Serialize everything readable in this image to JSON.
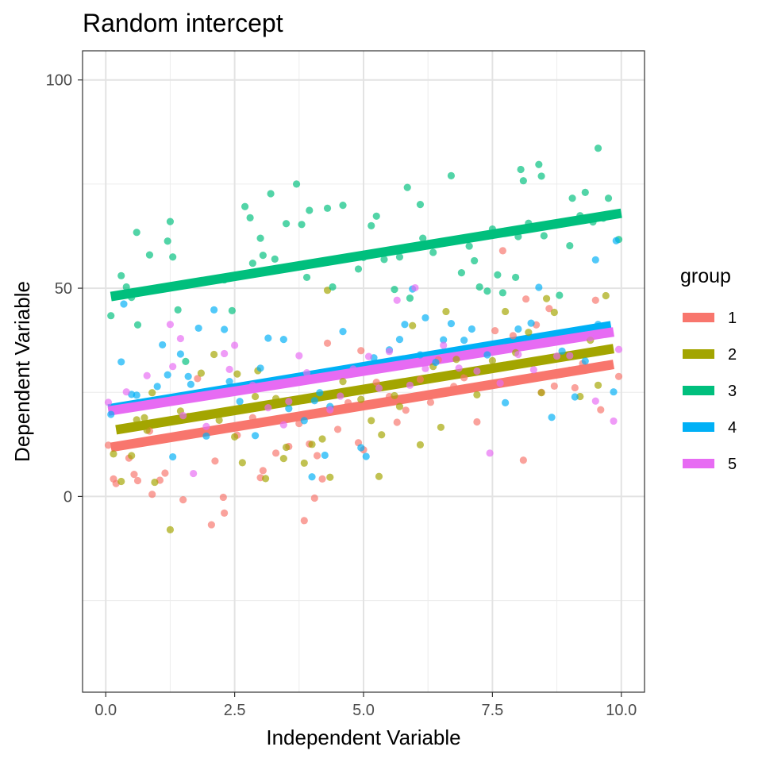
{
  "chart_data": {
    "type": "scatter",
    "title": "Random intercept",
    "xlabel": "Independent Variable",
    "ylabel": "Dependent Variable",
    "xlim": [
      -0.45,
      10.45
    ],
    "ylim": [
      -47,
      107
    ],
    "x_ticks": [
      0.0,
      2.5,
      5.0,
      7.5,
      10.0
    ],
    "x_tick_labels": [
      "0.0",
      "2.5",
      "5.0",
      "7.5",
      "10.0"
    ],
    "y_ticks": [
      0,
      50,
      100
    ],
    "y_tick_labels": [
      "0",
      "50",
      "100"
    ],
    "y_minor_ticks": [
      -25,
      25,
      75
    ],
    "x_minor_ticks": [
      1.25,
      3.75,
      6.25,
      8.75
    ],
    "grid": true,
    "legend": {
      "title": "group",
      "placement": "right",
      "entries": [
        "1",
        "2",
        "3",
        "4",
        "5"
      ]
    },
    "series": [
      {
        "name": "1",
        "color": "#F8766D",
        "fit": {
          "x": [
            0.1,
            9.85
          ],
          "y": [
            11.8,
            31.7
          ]
        },
        "points": [
          [
            0.05,
            12.3
          ],
          [
            0.15,
            4.2
          ],
          [
            0.2,
            3.1
          ],
          [
            0.45,
            9.2
          ],
          [
            0.55,
            5.3
          ],
          [
            0.62,
            3.8
          ],
          [
            0.85,
            15.7
          ],
          [
            0.9,
            0.5
          ],
          [
            1.05,
            3.9
          ],
          [
            1.15,
            5.6
          ],
          [
            1.5,
            -0.8
          ],
          [
            1.78,
            28.3
          ],
          [
            2.05,
            -6.8
          ],
          [
            2.12,
            8.5
          ],
          [
            2.28,
            -0.2
          ],
          [
            2.3,
            -4.0
          ],
          [
            2.55,
            14.7
          ],
          [
            2.85,
            18.9
          ],
          [
            3.0,
            4.5
          ],
          [
            3.05,
            6.2
          ],
          [
            3.3,
            10.4
          ],
          [
            3.55,
            12.0
          ],
          [
            3.75,
            17.5
          ],
          [
            3.85,
            -5.8
          ],
          [
            3.95,
            12.6
          ],
          [
            4.05,
            -0.4
          ],
          [
            4.1,
            9.8
          ],
          [
            4.2,
            4.2
          ],
          [
            4.3,
            36.8
          ],
          [
            4.5,
            16.1
          ],
          [
            4.7,
            22.5
          ],
          [
            4.9,
            12.9
          ],
          [
            4.95,
            35.0
          ],
          [
            5.0,
            11.2
          ],
          [
            5.25,
            27.4
          ],
          [
            5.5,
            24.0
          ],
          [
            5.65,
            17.8
          ],
          [
            5.82,
            20.7
          ],
          [
            6.1,
            28.1
          ],
          [
            6.3,
            22.6
          ],
          [
            6.45,
            32.8
          ],
          [
            6.75,
            26.4
          ],
          [
            6.95,
            28.5
          ],
          [
            7.2,
            17.9
          ],
          [
            7.55,
            39.8
          ],
          [
            7.7,
            59.0
          ],
          [
            7.9,
            38.6
          ],
          [
            8.1,
            8.7
          ],
          [
            8.15,
            47.4
          ],
          [
            8.35,
            41.2
          ],
          [
            8.45,
            25.0
          ],
          [
            8.6,
            45.1
          ],
          [
            8.7,
            26.5
          ],
          [
            9.0,
            30.3
          ],
          [
            9.1,
            26.1
          ],
          [
            9.25,
            31.9
          ],
          [
            9.5,
            47.1
          ],
          [
            9.6,
            20.8
          ],
          [
            9.95,
            28.8
          ]
        ]
      },
      {
        "name": "2",
        "color": "#A3A500",
        "fit": {
          "x": [
            0.2,
            9.85
          ],
          "y": [
            16.0,
            35.5
          ]
        },
        "points": [
          [
            0.15,
            10.2
          ],
          [
            0.3,
            3.6
          ],
          [
            0.5,
            9.8
          ],
          [
            0.6,
            18.4
          ],
          [
            0.75,
            18.9
          ],
          [
            0.8,
            15.9
          ],
          [
            0.9,
            24.9
          ],
          [
            0.95,
            3.4
          ],
          [
            1.25,
            -8.0
          ],
          [
            1.45,
            20.5
          ],
          [
            1.6,
            19.2
          ],
          [
            1.85,
            29.6
          ],
          [
            2.1,
            34.1
          ],
          [
            2.2,
            18.3
          ],
          [
            2.35,
            20.1
          ],
          [
            2.5,
            14.3
          ],
          [
            2.55,
            29.4
          ],
          [
            2.65,
            8.1
          ],
          [
            2.9,
            24.0
          ],
          [
            2.95,
            30.2
          ],
          [
            3.1,
            4.3
          ],
          [
            3.3,
            23.5
          ],
          [
            3.45,
            9.1
          ],
          [
            3.5,
            11.8
          ],
          [
            3.85,
            8.0
          ],
          [
            4.0,
            12.5
          ],
          [
            4.2,
            13.8
          ],
          [
            4.3,
            49.5
          ],
          [
            4.35,
            4.6
          ],
          [
            4.6,
            27.6
          ],
          [
            4.95,
            23.3
          ],
          [
            5.15,
            18.2
          ],
          [
            5.3,
            4.8
          ],
          [
            5.35,
            14.8
          ],
          [
            5.6,
            24.2
          ],
          [
            5.7,
            21.6
          ],
          [
            5.95,
            41.0
          ],
          [
            6.1,
            12.4
          ],
          [
            6.35,
            31.2
          ],
          [
            6.5,
            16.6
          ],
          [
            6.6,
            44.4
          ],
          [
            6.8,
            32.9
          ],
          [
            7.0,
            29.9
          ],
          [
            7.2,
            24.4
          ],
          [
            7.5,
            32.6
          ],
          [
            7.75,
            44.4
          ],
          [
            7.95,
            34.5
          ],
          [
            8.2,
            39.4
          ],
          [
            8.45,
            24.9
          ],
          [
            8.55,
            47.5
          ],
          [
            8.7,
            44.2
          ],
          [
            9.2,
            24.0
          ],
          [
            9.4,
            37.5
          ],
          [
            9.55,
            26.7
          ],
          [
            9.7,
            48.2
          ]
        ]
      },
      {
        "name": "3",
        "color": "#00BF7D",
        "fit": {
          "x": [
            0.1,
            10.0
          ],
          "y": [
            48.0,
            68.0
          ]
        },
        "points": [
          [
            0.1,
            43.4
          ],
          [
            0.3,
            53.0
          ],
          [
            0.4,
            50.3
          ],
          [
            0.5,
            47.8
          ],
          [
            0.6,
            63.4
          ],
          [
            0.62,
            41.2
          ],
          [
            0.85,
            58.0
          ],
          [
            1.2,
            61.3
          ],
          [
            1.25,
            66.0
          ],
          [
            1.3,
            57.5
          ],
          [
            1.4,
            44.8
          ],
          [
            1.55,
            32.4
          ],
          [
            2.3,
            52.0
          ],
          [
            2.45,
            44.6
          ],
          [
            2.7,
            69.6
          ],
          [
            2.8,
            66.9
          ],
          [
            2.85,
            56.0
          ],
          [
            3.0,
            62.0
          ],
          [
            3.05,
            57.9
          ],
          [
            3.2,
            72.7
          ],
          [
            3.28,
            57.0
          ],
          [
            3.5,
            65.5
          ],
          [
            3.7,
            75.0
          ],
          [
            3.8,
            65.3
          ],
          [
            3.9,
            52.6
          ],
          [
            3.95,
            68.7
          ],
          [
            4.3,
            69.2
          ],
          [
            4.4,
            50.3
          ],
          [
            4.6,
            69.9
          ],
          [
            4.9,
            54.6
          ],
          [
            5.0,
            57.4
          ],
          [
            5.15,
            65.0
          ],
          [
            5.25,
            67.3
          ],
          [
            5.4,
            56.9
          ],
          [
            5.6,
            49.7
          ],
          [
            5.7,
            57.5
          ],
          [
            5.85,
            74.2
          ],
          [
            5.9,
            47.6
          ],
          [
            6.1,
            70.1
          ],
          [
            6.15,
            62.0
          ],
          [
            6.35,
            58.6
          ],
          [
            6.7,
            77.0
          ],
          [
            6.9,
            53.7
          ],
          [
            7.05,
            60.1
          ],
          [
            7.15,
            56.6
          ],
          [
            7.25,
            50.3
          ],
          [
            7.4,
            49.3
          ],
          [
            7.5,
            64.2
          ],
          [
            7.6,
            53.2
          ],
          [
            7.7,
            48.9
          ],
          [
            7.95,
            52.6
          ],
          [
            8.0,
            62.4
          ],
          [
            8.05,
            78.5
          ],
          [
            8.1,
            75.8
          ],
          [
            8.2,
            65.6
          ],
          [
            8.3,
            64.8
          ],
          [
            8.4,
            79.7
          ],
          [
            8.45,
            76.9
          ],
          [
            8.5,
            62.6
          ],
          [
            8.7,
            65.1
          ],
          [
            8.8,
            48.3
          ],
          [
            9.0,
            60.2
          ],
          [
            9.05,
            71.6
          ],
          [
            9.2,
            67.4
          ],
          [
            9.3,
            73.0
          ],
          [
            9.45,
            65.9
          ],
          [
            9.55,
            83.6
          ],
          [
            9.65,
            66.8
          ],
          [
            9.75,
            71.6
          ],
          [
            9.95,
            61.7
          ]
        ]
      },
      {
        "name": "4",
        "color": "#00B0F6",
        "fit": {
          "x": [
            0.05,
            9.8
          ],
          "y": [
            21.0,
            41.0
          ]
        },
        "points": [
          [
            0.1,
            19.7
          ],
          [
            0.3,
            32.3
          ],
          [
            0.35,
            46.2
          ],
          [
            0.5,
            24.5
          ],
          [
            0.6,
            24.3
          ],
          [
            1.0,
            26.4
          ],
          [
            1.1,
            36.4
          ],
          [
            1.2,
            29.2
          ],
          [
            1.3,
            9.5
          ],
          [
            1.45,
            34.2
          ],
          [
            1.6,
            28.8
          ],
          [
            1.65,
            26.9
          ],
          [
            1.8,
            40.4
          ],
          [
            1.95,
            14.5
          ],
          [
            2.1,
            44.8
          ],
          [
            2.3,
            40.1
          ],
          [
            2.4,
            27.6
          ],
          [
            2.6,
            22.8
          ],
          [
            2.9,
            14.6
          ],
          [
            3.0,
            30.8
          ],
          [
            3.15,
            38.0
          ],
          [
            3.45,
            37.7
          ],
          [
            3.55,
            21.1
          ],
          [
            3.85,
            18.2
          ],
          [
            4.0,
            4.7
          ],
          [
            4.05,
            23.0
          ],
          [
            4.15,
            24.9
          ],
          [
            4.25,
            9.9
          ],
          [
            4.35,
            21.6
          ],
          [
            4.6,
            39.6
          ],
          [
            4.95,
            11.7
          ],
          [
            5.05,
            9.6
          ],
          [
            5.2,
            33.3
          ],
          [
            5.5,
            35.2
          ],
          [
            5.7,
            37.7
          ],
          [
            5.8,
            41.3
          ],
          [
            5.95,
            49.8
          ],
          [
            6.1,
            34.0
          ],
          [
            6.2,
            42.9
          ],
          [
            6.4,
            32.2
          ],
          [
            6.55,
            37.6
          ],
          [
            6.7,
            41.5
          ],
          [
            6.95,
            37.5
          ],
          [
            7.1,
            40.2
          ],
          [
            7.4,
            34.0
          ],
          [
            7.75,
            22.5
          ],
          [
            8.0,
            40.2
          ],
          [
            8.25,
            41.6
          ],
          [
            8.4,
            50.2
          ],
          [
            8.65,
            19.0
          ],
          [
            8.85,
            34.9
          ],
          [
            9.1,
            23.9
          ],
          [
            9.3,
            32.5
          ],
          [
            9.5,
            56.8
          ],
          [
            9.55,
            41.3
          ],
          [
            9.85,
            25.1
          ],
          [
            9.9,
            61.4
          ]
        ]
      },
      {
        "name": "5",
        "color": "#E76BF3",
        "fit": {
          "x": [
            0.05,
            9.85
          ],
          "y": [
            20.5,
            39.5
          ]
        },
        "points": [
          [
            0.05,
            22.6
          ],
          [
            0.4,
            25.1
          ],
          [
            0.6,
            21.8
          ],
          [
            0.8,
            29.0
          ],
          [
            1.25,
            41.3
          ],
          [
            1.3,
            31.2
          ],
          [
            1.45,
            37.9
          ],
          [
            1.5,
            19.4
          ],
          [
            1.7,
            5.5
          ],
          [
            1.95,
            16.8
          ],
          [
            2.3,
            34.3
          ],
          [
            2.4,
            30.5
          ],
          [
            2.5,
            36.3
          ],
          [
            2.85,
            26.7
          ],
          [
            3.15,
            21.3
          ],
          [
            3.45,
            17.2
          ],
          [
            3.55,
            22.8
          ],
          [
            3.75,
            33.8
          ],
          [
            3.9,
            29.7
          ],
          [
            4.35,
            20.8
          ],
          [
            4.55,
            24.1
          ],
          [
            4.8,
            30.6
          ],
          [
            5.1,
            33.6
          ],
          [
            5.3,
            26.0
          ],
          [
            5.5,
            34.8
          ],
          [
            5.65,
            47.1
          ],
          [
            5.9,
            26.7
          ],
          [
            6.0,
            50.1
          ],
          [
            6.2,
            30.7
          ],
          [
            6.55,
            36.3
          ],
          [
            6.85,
            30.8
          ],
          [
            7.2,
            30.1
          ],
          [
            7.45,
            10.4
          ],
          [
            7.65,
            27.2
          ],
          [
            8.0,
            34.1
          ],
          [
            8.3,
            30.4
          ],
          [
            8.75,
            33.7
          ],
          [
            9.0,
            33.8
          ],
          [
            9.4,
            38.1
          ],
          [
            9.5,
            22.9
          ],
          [
            9.85,
            18.1
          ],
          [
            9.95,
            35.3
          ]
        ]
      }
    ]
  }
}
